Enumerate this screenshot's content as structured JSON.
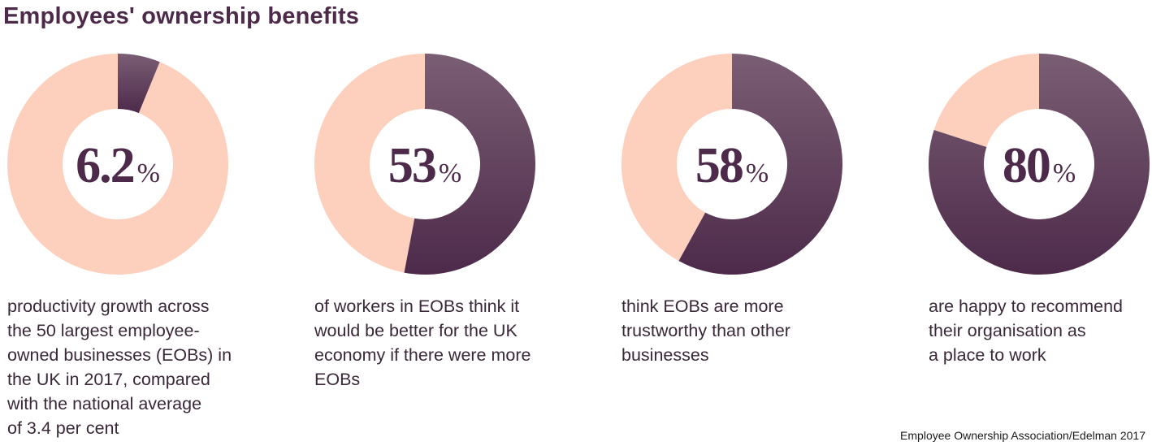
{
  "title": "Employees' ownership benefits",
  "source": "Employee Ownership Association/Edelman 2017",
  "colors": {
    "primary": "#4d2a4a",
    "primary_light": "#7a5e74",
    "remainder": "#fdd0bd"
  },
  "chart_data": [
    {
      "type": "pie",
      "value": 6.2,
      "value_label": "6.2",
      "unit": "%",
      "description": "productivity growth across\nthe 50 largest employee-\nowned businesses (EOBs) in\nthe UK in 2017, compared\nwith the national average\nof 3.4 per cent"
    },
    {
      "type": "pie",
      "value": 53,
      "value_label": "53",
      "unit": "%",
      "description": "of workers in EOBs think it\nwould be better for the UK\neconomy if there were more\nEOBs"
    },
    {
      "type": "pie",
      "value": 58,
      "value_label": "58",
      "unit": "%",
      "description": "think EOBs are more\ntrustworthy than other\nbusinesses"
    },
    {
      "type": "pie",
      "value": 80,
      "value_label": "80",
      "unit": "%",
      "description": "are happy to recommend\ntheir organisation as\na place to work"
    }
  ]
}
